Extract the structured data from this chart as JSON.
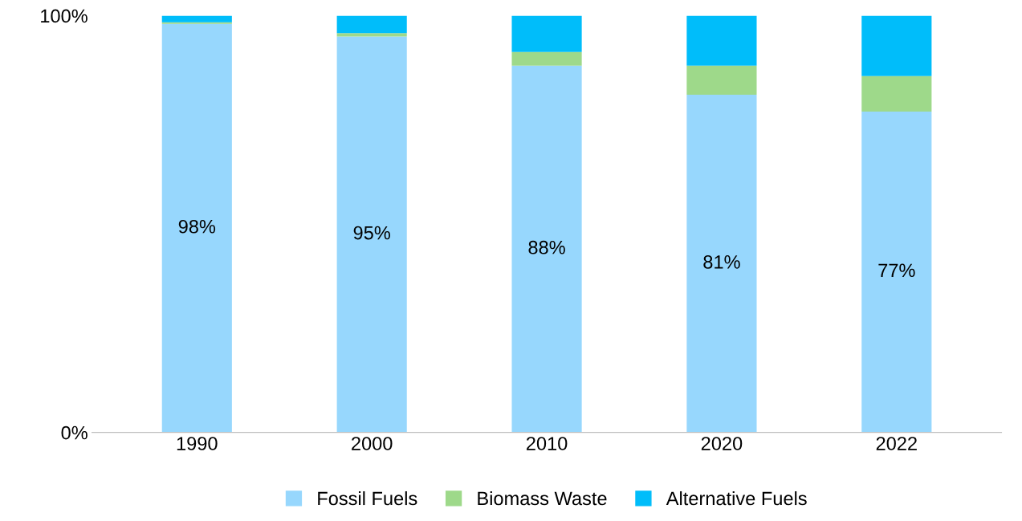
{
  "chart_data": {
    "type": "bar",
    "stacked": true,
    "categories": [
      "1990",
      "2000",
      "2010",
      "2020",
      "2022"
    ],
    "series": [
      {
        "name": "Fossil Fuels",
        "color": "#97d7fd",
        "values": [
          98,
          95,
          88,
          81,
          77
        ],
        "value_labels": [
          "98%",
          "95%",
          "88%",
          "81%",
          "77%"
        ]
      },
      {
        "name": "Biomass Waste",
        "color": "#9ed98a",
        "values": [
          0.4,
          0.8,
          3.3,
          7,
          8.5
        ]
      },
      {
        "name": "Alternative Fuels",
        "color": "#00bdfa",
        "values": [
          1.6,
          4.2,
          8.7,
          12,
          14.5
        ]
      }
    ],
    "ylim": [
      0,
      100
    ],
    "yticks": [
      {
        "value": 0,
        "label": "0%"
      },
      {
        "value": 100,
        "label": "100%"
      }
    ],
    "grid": false,
    "legend": "bottom"
  }
}
